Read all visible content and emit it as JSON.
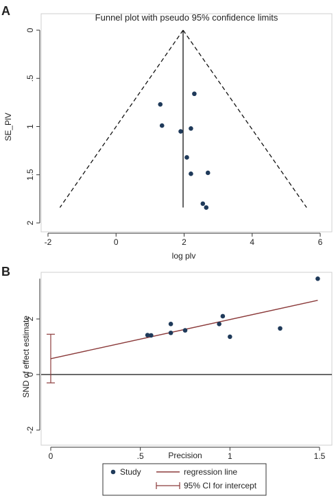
{
  "chart_data": [
    {
      "panel": "A",
      "type": "scatter",
      "title": "Funnel plot with pseudo 95% confidence limits",
      "xlabel": "log plv",
      "ylabel": "SE_PlV",
      "xlim": [
        -2.5,
        6.5
      ],
      "ylim": [
        0,
        2
      ],
      "y_reversed": true,
      "xticks": [
        {
          "v": -2,
          "label": "-2"
        },
        {
          "v": 0,
          "label": "0"
        },
        {
          "v": 2,
          "label": "2"
        },
        {
          "v": 4,
          "label": "4"
        },
        {
          "v": 6,
          "label": "6"
        }
      ],
      "yticks": [
        {
          "v": 0,
          "label": "0"
        },
        {
          "v": 0.5,
          "label": ".5"
        },
        {
          "v": 1,
          "label": "1"
        },
        {
          "v": 1.5,
          "label": "1.5"
        },
        {
          "v": 2,
          "label": "2"
        }
      ],
      "points": [
        {
          "x": 2.3,
          "y": 0.66
        },
        {
          "x": 1.3,
          "y": 0.77
        },
        {
          "x": 1.35,
          "y": 0.99
        },
        {
          "x": 1.9,
          "y": 1.05
        },
        {
          "x": 2.2,
          "y": 1.02
        },
        {
          "x": 2.08,
          "y": 1.32
        },
        {
          "x": 2.2,
          "y": 1.49
        },
        {
          "x": 2.7,
          "y": 1.48
        },
        {
          "x": 2.55,
          "y": 1.8
        },
        {
          "x": 2.65,
          "y": 1.84
        }
      ],
      "pooled_estimate": 1.97,
      "se_max": 1.84,
      "ci_lines": {
        "lower": [
          1.97,
          -1.65
        ],
        "upper": [
          1.97,
          5.6
        ]
      },
      "grid": false,
      "point_color": "#1f3a5a"
    },
    {
      "panel": "B",
      "type": "scatter",
      "xlabel": "Precision",
      "ylabel": "SND of effect estimate",
      "xlim": [
        -0.03,
        1.52
      ],
      "ylim": [
        -2.6,
        3.7
      ],
      "xticks": [
        {
          "v": 0,
          "label": "0"
        },
        {
          "v": 0.5,
          "label": ".5"
        },
        {
          "v": 1,
          "label": "1"
        },
        {
          "v": 1.5,
          "label": "1.5"
        }
      ],
      "yticks": [
        {
          "v": -2,
          "label": "-2"
        },
        {
          "v": 0,
          "label": "0"
        },
        {
          "v": 2,
          "label": "2"
        }
      ],
      "points": [
        {
          "x": 0.54,
          "y": 1.42
        },
        {
          "x": 0.56,
          "y": 1.41
        },
        {
          "x": 0.67,
          "y": 1.5
        },
        {
          "x": 0.67,
          "y": 1.82
        },
        {
          "x": 0.75,
          "y": 1.59
        },
        {
          "x": 0.94,
          "y": 1.82
        },
        {
          "x": 0.96,
          "y": 2.1
        },
        {
          "x": 1.0,
          "y": 1.36
        },
        {
          "x": 1.28,
          "y": 1.66
        },
        {
          "x": 1.49,
          "y": 3.45
        }
      ],
      "regression_line": {
        "x": [
          0,
          1.49
        ],
        "y": [
          0.57,
          2.67
        ]
      },
      "intercept_ci": {
        "x": 0,
        "low": -0.3,
        "high": 1.45
      },
      "zero_line": 0,
      "grid": false,
      "point_color": "#1f3a5a",
      "line_color": "#8b3a3a",
      "legend_position": "bottom",
      "legend": [
        {
          "kind": "point",
          "label": "Study"
        },
        {
          "kind": "line",
          "label": "regression line"
        },
        {
          "kind": "ci",
          "label": "95% CI for intercept"
        }
      ]
    }
  ],
  "panel_letters": [
    "A",
    "B"
  ]
}
